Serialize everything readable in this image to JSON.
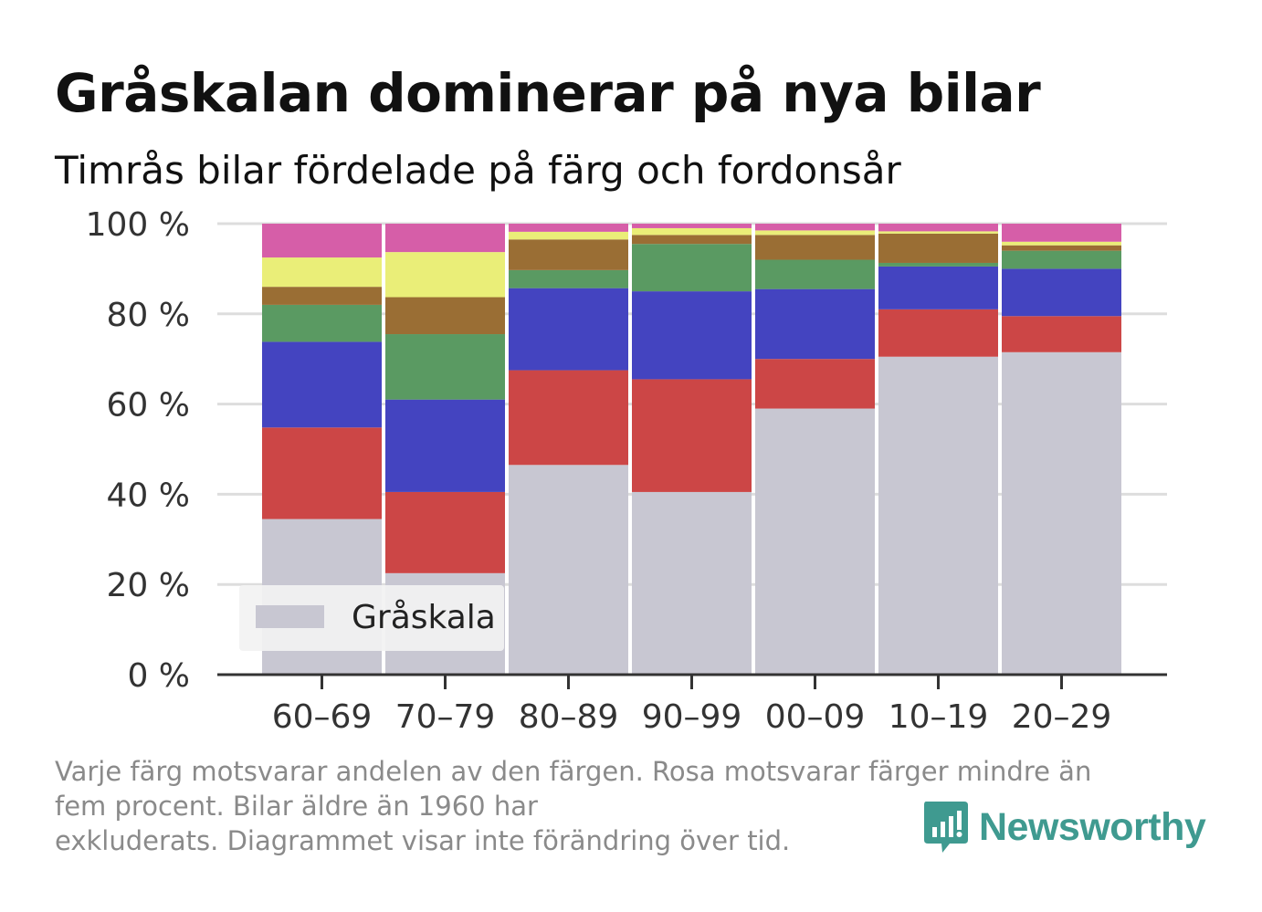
{
  "title": "Gråskalan dominerar på nya bilar",
  "subtitle": "Timrås bilar fördelade på färg och fordonsår",
  "footnote": {
    "line1": "Varje färg motsvarar andelen av den färgen. Rosa motsvarar färger mindre än",
    "line2": "fem procent. Bilar äldre än 1960 har",
    "line3": "exkluderats. Diagrammet visar inte förändring över tid."
  },
  "brand": {
    "name": "Newsworthy",
    "color": "#3f9a90",
    "icon": "bar-chart-speech-bubble-icon"
  },
  "chart_data": {
    "type": "bar",
    "stacked": true,
    "percent": true,
    "categories": [
      "60–69",
      "70–79",
      "80–89",
      "90–99",
      "00–09",
      "10–19",
      "20–29"
    ],
    "ylim": [
      0,
      100
    ],
    "yticks": [
      0,
      20,
      40,
      60,
      80,
      100
    ],
    "ytick_labels": [
      "0 %",
      "20 %",
      "40 %",
      "60 %",
      "80 %",
      "100 %"
    ],
    "grid": true,
    "legend": {
      "position": "bottom-left",
      "entries": [
        "Gråskala"
      ]
    },
    "series": [
      {
        "name": "Gråskala",
        "color": "#c8c7d2",
        "values": [
          34.5,
          22.5,
          46.5,
          40.5,
          59.0,
          70.5,
          71.5
        ]
      },
      {
        "color": "#cc4646",
        "values": [
          20.3,
          18.0,
          21.0,
          25.0,
          11.0,
          10.5,
          8.0
        ]
      },
      {
        "color": "#4444c0",
        "values": [
          19.0,
          20.5,
          18.2,
          19.5,
          15.5,
          9.5,
          10.5
        ]
      },
      {
        "color": "#5a9a62",
        "values": [
          8.2,
          14.5,
          4.0,
          10.5,
          6.5,
          0.8,
          4.0
        ]
      },
      {
        "color": "#9a6e34",
        "values": [
          4.0,
          8.2,
          6.8,
          2.0,
          5.5,
          6.5,
          1.2
        ]
      },
      {
        "color": "#eaee78",
        "values": [
          6.5,
          10.0,
          1.7,
          1.5,
          1.0,
          0.5,
          0.8
        ]
      },
      {
        "color": "#d65ea8",
        "values": [
          7.5,
          6.3,
          1.8,
          1.0,
          1.5,
          1.7,
          4.0
        ]
      }
    ]
  }
}
